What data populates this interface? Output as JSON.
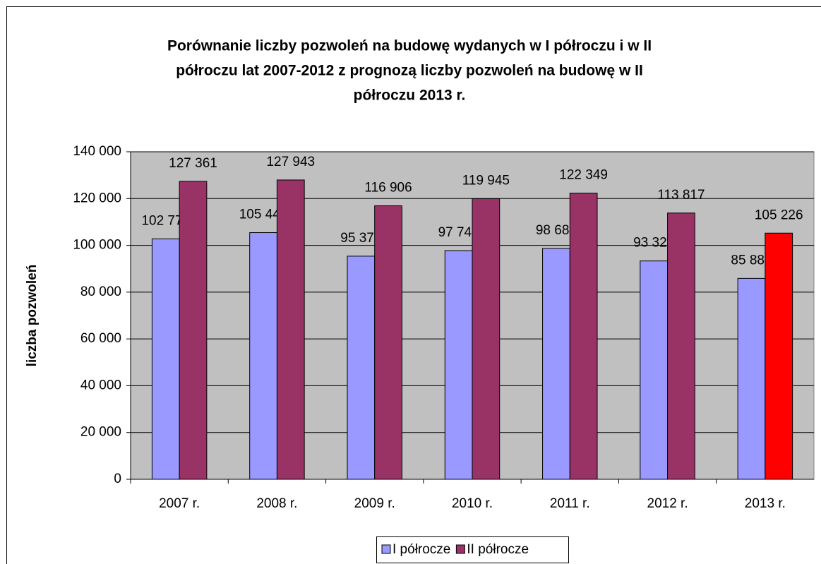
{
  "chart_data": {
    "type": "bar",
    "title_lines": [
      "Porównanie liczby pozwoleń na budowę wydanych w I półroczu i w II",
      "półroczu lat 2007-2012 z prognozą liczby pozwoleń na budowę w II",
      "półroczu 2013 r."
    ],
    "ylabel": "liczba pozwoleń",
    "categories": [
      "2007 r.",
      "2008 r.",
      "2009 r.",
      "2010 r.",
      "2011 r.",
      "2012 r.",
      "2013 r."
    ],
    "series": [
      {
        "name": "I półrocze",
        "color": "#9999ff",
        "values": [
          102777,
          105443,
          95373,
          97749,
          98684,
          93325,
          85885
        ],
        "value_labels": [
          "102 777",
          "105 443",
          "95 373",
          "97 749",
          "98 684",
          "93 325",
          "85 885"
        ]
      },
      {
        "name": "II półrocze",
        "color": "#993366",
        "colors": [
          "#993366",
          "#993366",
          "#993366",
          "#993366",
          "#993366",
          "#993366",
          "#ff0000"
        ],
        "values": [
          127361,
          127943,
          116906,
          119945,
          122349,
          113817,
          105226
        ],
        "value_labels": [
          "127 361",
          "127 943",
          "116 906",
          "119 945",
          "122 349",
          "113 817",
          "105 226"
        ]
      }
    ],
    "ylim": [
      0,
      140000
    ],
    "yticks": [
      0,
      {
        "value": 20000,
        "label": "20 000"
      },
      {
        "value": 40000,
        "label": "40 000"
      },
      {
        "value": 60000,
        "label": "60 000"
      },
      {
        "value": 80000,
        "label": "80 000"
      },
      {
        "value": 100000,
        "label": "100 000"
      },
      {
        "value": 120000,
        "label": "120 000"
      },
      {
        "value": 140000,
        "label": "140 000"
      }
    ],
    "grid": true,
    "plot_background": "#c0c0c0",
    "legend": "bottom"
  }
}
